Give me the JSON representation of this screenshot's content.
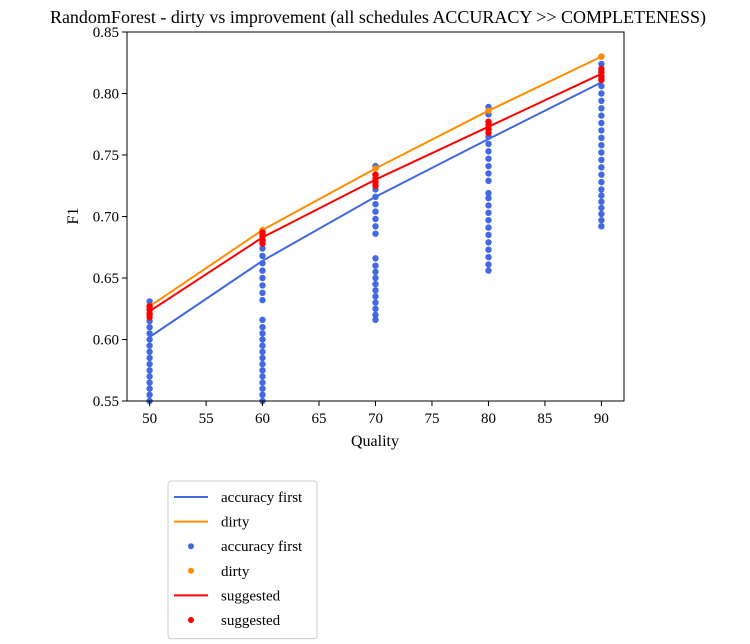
{
  "chart_data": {
    "type": "line",
    "title": "RandomForest - dirty vs improvement (all schedules ACCURACY >> COMPLETENESS)",
    "xlabel": "Quality",
    "ylabel": "F1",
    "xlim": [
      48,
      92
    ],
    "ylim": [
      0.55,
      0.85
    ],
    "xticks": [
      50,
      55,
      60,
      65,
      70,
      75,
      80,
      85,
      90
    ],
    "yticks": [
      0.55,
      0.6,
      0.65,
      0.7,
      0.75,
      0.8,
      0.85
    ],
    "xtick_labels": [
      "50",
      "55",
      "60",
      "65",
      "70",
      "75",
      "80",
      "85",
      "90"
    ],
    "ytick_labels": [
      "0.55",
      "0.60",
      "0.65",
      "0.70",
      "0.75",
      "0.80",
      "0.85"
    ],
    "grid": false,
    "legend_placement": "below",
    "x": [
      50,
      60,
      70,
      80,
      90
    ],
    "series": [
      {
        "name": "accuracy first",
        "kind": "line",
        "color": "#4169e1",
        "x": [
          50,
          60,
          70,
          80,
          90
        ],
        "y": [
          0.602,
          0.664,
          0.716,
          0.763,
          0.809
        ]
      },
      {
        "name": "dirty",
        "kind": "line",
        "color": "#ff8c00",
        "x": [
          50,
          60,
          70,
          80,
          90
        ],
        "y": [
          0.627,
          0.689,
          0.739,
          0.786,
          0.83
        ]
      },
      {
        "name": "accuracy first",
        "kind": "scatter",
        "color": "#4169e1",
        "points": [
          [
            50,
            0.55
          ],
          [
            50,
            0.555
          ],
          [
            50,
            0.56
          ],
          [
            50,
            0.565
          ],
          [
            50,
            0.57
          ],
          [
            50,
            0.575
          ],
          [
            50,
            0.58
          ],
          [
            50,
            0.585
          ],
          [
            50,
            0.59
          ],
          [
            50,
            0.595
          ],
          [
            50,
            0.6
          ],
          [
            50,
            0.605
          ],
          [
            50,
            0.61
          ],
          [
            50,
            0.615
          ],
          [
            50,
            0.62
          ],
          [
            50,
            0.625
          ],
          [
            50,
            0.631
          ],
          [
            60,
            0.55
          ],
          [
            60,
            0.555
          ],
          [
            60,
            0.56
          ],
          [
            60,
            0.565
          ],
          [
            60,
            0.57
          ],
          [
            60,
            0.575
          ],
          [
            60,
            0.58
          ],
          [
            60,
            0.585
          ],
          [
            60,
            0.59
          ],
          [
            60,
            0.595
          ],
          [
            60,
            0.6
          ],
          [
            60,
            0.605
          ],
          [
            60,
            0.61
          ],
          [
            60,
            0.616
          ],
          [
            60,
            0.632
          ],
          [
            60,
            0.638
          ],
          [
            60,
            0.644
          ],
          [
            60,
            0.65
          ],
          [
            60,
            0.656
          ],
          [
            60,
            0.662
          ],
          [
            60,
            0.668
          ],
          [
            60,
            0.674
          ],
          [
            60,
            0.68
          ],
          [
            60,
            0.686
          ],
          [
            70,
            0.616
          ],
          [
            70,
            0.62
          ],
          [
            70,
            0.625
          ],
          [
            70,
            0.63
          ],
          [
            70,
            0.635
          ],
          [
            70,
            0.64
          ],
          [
            70,
            0.645
          ],
          [
            70,
            0.65
          ],
          [
            70,
            0.655
          ],
          [
            70,
            0.66
          ],
          [
            70,
            0.666
          ],
          [
            70,
            0.686
          ],
          [
            70,
            0.692
          ],
          [
            70,
            0.698
          ],
          [
            70,
            0.704
          ],
          [
            70,
            0.71
          ],
          [
            70,
            0.716
          ],
          [
            70,
            0.722
          ],
          [
            70,
            0.728
          ],
          [
            70,
            0.734
          ],
          [
            70,
            0.741
          ],
          [
            80,
            0.656
          ],
          [
            80,
            0.661
          ],
          [
            80,
            0.667
          ],
          [
            80,
            0.673
          ],
          [
            80,
            0.679
          ],
          [
            80,
            0.685
          ],
          [
            80,
            0.691
          ],
          [
            80,
            0.697
          ],
          [
            80,
            0.703
          ],
          [
            80,
            0.709
          ],
          [
            80,
            0.715
          ],
          [
            80,
            0.719
          ],
          [
            80,
            0.729
          ],
          [
            80,
            0.735
          ],
          [
            80,
            0.741
          ],
          [
            80,
            0.747
          ],
          [
            80,
            0.753
          ],
          [
            80,
            0.759
          ],
          [
            80,
            0.765
          ],
          [
            80,
            0.771
          ],
          [
            80,
            0.777
          ],
          [
            80,
            0.783
          ],
          [
            80,
            0.789
          ],
          [
            90,
            0.692
          ],
          [
            90,
            0.697
          ],
          [
            90,
            0.702
          ],
          [
            90,
            0.707
          ],
          [
            90,
            0.712
          ],
          [
            90,
            0.717
          ],
          [
            90,
            0.722
          ],
          [
            90,
            0.728
          ],
          [
            90,
            0.734
          ],
          [
            90,
            0.74
          ],
          [
            90,
            0.746
          ],
          [
            90,
            0.752
          ],
          [
            90,
            0.758
          ],
          [
            90,
            0.764
          ],
          [
            90,
            0.77
          ],
          [
            90,
            0.776
          ],
          [
            90,
            0.782
          ],
          [
            90,
            0.788
          ],
          [
            90,
            0.794
          ],
          [
            90,
            0.8
          ],
          [
            90,
            0.806
          ],
          [
            90,
            0.812
          ],
          [
            90,
            0.818
          ],
          [
            90,
            0.824
          ],
          [
            90,
            0.83
          ]
        ]
      },
      {
        "name": "dirty",
        "kind": "scatter",
        "color": "#ff8c00",
        "points": [
          [
            50,
            0.627
          ],
          [
            60,
            0.689
          ],
          [
            70,
            0.739
          ],
          [
            80,
            0.786
          ],
          [
            90,
            0.83
          ]
        ]
      },
      {
        "name": "suggested",
        "kind": "line",
        "color": "#ff0000",
        "x": [
          50,
          60,
          70,
          80,
          90
        ],
        "y": [
          0.623,
          0.683,
          0.73,
          0.773,
          0.816
        ]
      },
      {
        "name": "suggested",
        "kind": "scatter",
        "color": "#ff0000",
        "points": [
          [
            50,
            0.618
          ],
          [
            50,
            0.621
          ],
          [
            50,
            0.624
          ],
          [
            50,
            0.627
          ],
          [
            60,
            0.678
          ],
          [
            60,
            0.681
          ],
          [
            60,
            0.684
          ],
          [
            60,
            0.687
          ],
          [
            70,
            0.725
          ],
          [
            70,
            0.728
          ],
          [
            70,
            0.731
          ],
          [
            70,
            0.734
          ],
          [
            80,
            0.768
          ],
          [
            80,
            0.771
          ],
          [
            80,
            0.774
          ],
          [
            80,
            0.777
          ],
          [
            90,
            0.811
          ],
          [
            90,
            0.814
          ],
          [
            90,
            0.817
          ],
          [
            90,
            0.82
          ]
        ]
      }
    ],
    "legend": [
      {
        "label": "accuracy first",
        "kind": "line",
        "color": "#4169e1"
      },
      {
        "label": "dirty",
        "kind": "line",
        "color": "#ff8c00"
      },
      {
        "label": "accuracy first",
        "kind": "dot",
        "color": "#4169e1"
      },
      {
        "label": "dirty",
        "kind": "dot",
        "color": "#ff8c00"
      },
      {
        "label": "suggested",
        "kind": "line",
        "color": "#ff0000"
      },
      {
        "label": "suggested",
        "kind": "dot",
        "color": "#ff0000"
      }
    ]
  }
}
